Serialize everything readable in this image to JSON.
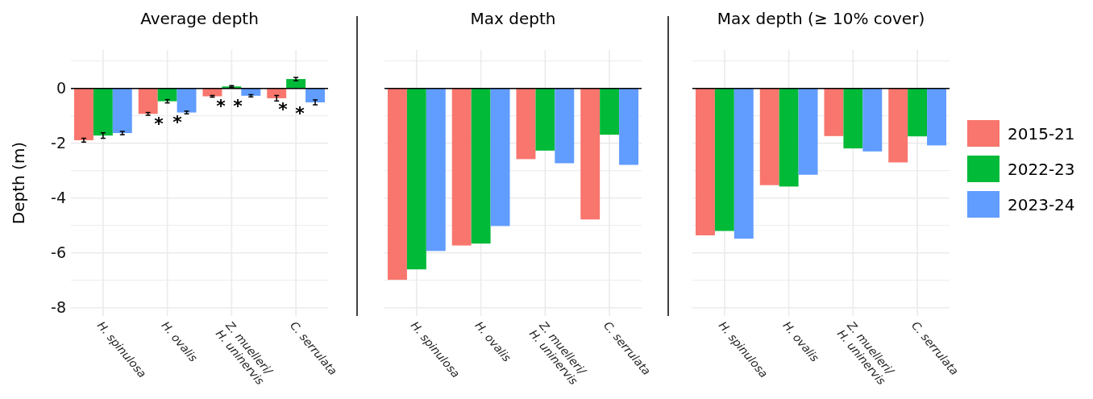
{
  "chart_data": [
    {
      "type": "bar",
      "title": "Average depth",
      "ylabel": "Depth (m)",
      "categories": [
        "H. spinulosa",
        "H. ovalis",
        "Z. muelleri/\nH. uninervis",
        "C. serrulata"
      ],
      "series": [
        {
          "color": "#f8766d",
          "values": [
            -1.89,
            -0.93,
            -0.29,
            -0.36
          ],
          "errors": [
            0.07,
            0.05,
            0.03,
            0.1
          ]
        },
        {
          "color": "#00ba38",
          "values": [
            -1.72,
            -0.47,
            0.07,
            0.34
          ],
          "errors": [
            0.1,
            0.06,
            0.03,
            0.06
          ]
        },
        {
          "color": "#619cff",
          "values": [
            -1.63,
            -0.88,
            -0.27,
            -0.51
          ],
          "errors": [
            0.06,
            0.05,
            0.04,
            0.09
          ]
        }
      ],
      "annotations": [
        "*",
        "*",
        "*",
        "*",
        "*",
        "*"
      ],
      "ylim": [
        -8.3,
        1.4
      ],
      "yticks": [
        {
          "value": 1,
          "label": null
        },
        0,
        {
          "value": -1,
          "label": null
        },
        -2,
        {
          "value": -3,
          "label": null
        },
        -4,
        {
          "value": -5,
          "label": null
        },
        -6,
        {
          "value": -7,
          "label": null
        },
        -8
      ],
      "grid": true,
      "legend": false
    },
    {
      "type": "bar",
      "title": "Max depth",
      "categories": [
        "H. spinulosa",
        "H. ovalis",
        "Z. muelleri/\nH. uninervis",
        "C. serrulata"
      ],
      "series": [
        {
          "color": "#f8766d",
          "values": [
            -6.98,
            -5.73,
            -2.58,
            -4.78
          ]
        },
        {
          "color": "#00ba38",
          "values": [
            -6.6,
            -5.66,
            -2.27,
            -1.69
          ]
        },
        {
          "color": "#619cff",
          "values": [
            -5.93,
            -5.02,
            -2.73,
            -2.79
          ]
        }
      ],
      "ylim": [
        -8.3,
        1.4
      ],
      "yticks": [
        {
          "value": 1,
          "label": null
        },
        0,
        {
          "value": -1,
          "label": null
        },
        -2,
        {
          "value": -3,
          "label": null
        },
        -4,
        {
          "value": -5,
          "label": null
        },
        -6,
        {
          "value": -7,
          "label": null
        },
        -8
      ],
      "grid": true,
      "legend": false,
      "tick_labels": "x"
    },
    {
      "type": "bar",
      "title": "Max depth (≥ 10% cover)",
      "categories": [
        "H. spinulosa",
        "H. ovalis",
        "Z. muelleri/\nH. uninervis",
        "C. serrulata"
      ],
      "series": [
        {
          "name": "2015-21",
          "color": "#f8766d",
          "values": [
            -5.36,
            -3.53,
            -1.74,
            -2.7
          ]
        },
        {
          "name": "2022-23",
          "color": "#00ba38",
          "values": [
            -5.2,
            -3.58,
            -2.19,
            -1.75
          ]
        },
        {
          "name": "2023-24",
          "color": "#619cff",
          "values": [
            -5.48,
            -3.15,
            -2.3,
            -2.08
          ]
        }
      ],
      "ylim": [
        -8.3,
        1.4
      ],
      "yticks": [
        {
          "value": 1,
          "label": null
        },
        0,
        {
          "value": -1,
          "label": null
        },
        -2,
        {
          "value": -3,
          "label": null
        },
        -4,
        {
          "value": -5,
          "label": null
        },
        -6,
        {
          "value": -7,
          "label": null
        },
        -8
      ],
      "grid": true,
      "legend": "right",
      "tick_labels": "x"
    }
  ]
}
